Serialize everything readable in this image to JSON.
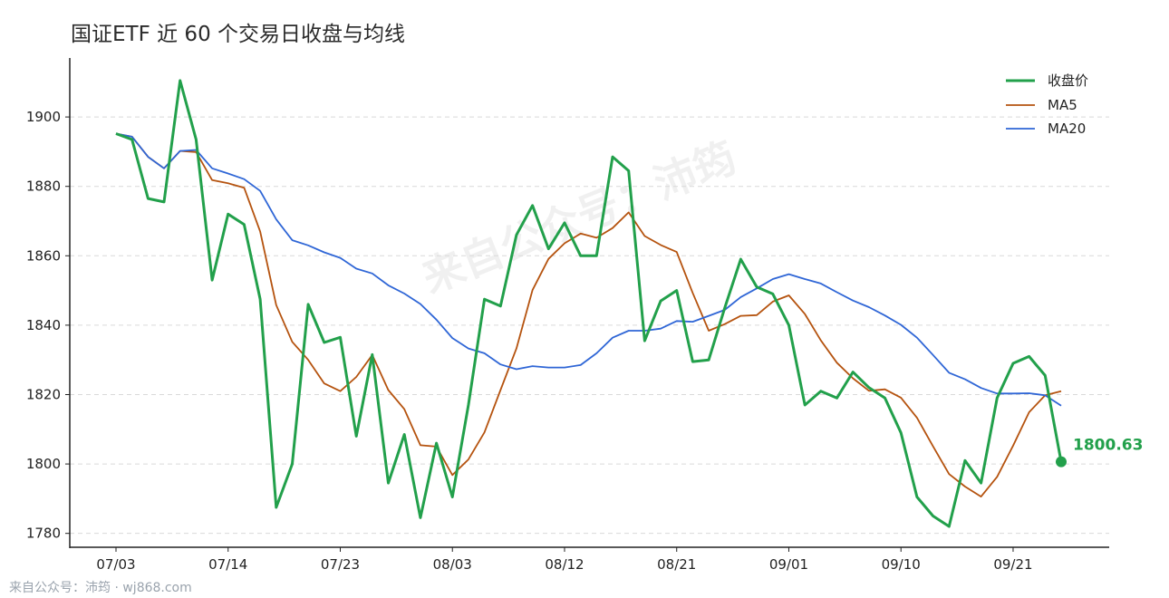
{
  "title": "国证ETF 近 60 个交易日收盘与均线",
  "watermark": "来自公众号：沛筠",
  "footer": "来自公众号：沛筠 · wj868.com",
  "colors": {
    "close": "#22a04b",
    "ma5": "#b5530f",
    "ma20": "#2f66d6"
  },
  "chart_data": {
    "type": "line",
    "title": "国证ETF 近 60 个交易日收盘与均线",
    "xlabel": "",
    "ylabel": "",
    "ylim": [
      1776,
      1917
    ],
    "yticks": [
      1780,
      1800,
      1820,
      1840,
      1860,
      1880,
      1900
    ],
    "xticks": [
      {
        "index": 0,
        "label": "07/03"
      },
      {
        "index": 7,
        "label": "07/14"
      },
      {
        "index": 14,
        "label": "07/23"
      },
      {
        "index": 21,
        "label": "08/03"
      },
      {
        "index": 28,
        "label": "08/12"
      },
      {
        "index": 35,
        "label": "08/21"
      },
      {
        "index": 42,
        "label": "09/01"
      },
      {
        "index": 49,
        "label": "09/10"
      },
      {
        "index": 56,
        "label": "09/21"
      }
    ],
    "grid": "horizontal-dashed",
    "legend_position": "top-right",
    "last_value_label": "1800.63",
    "series": [
      {
        "name": "收盘价",
        "values": [
          1895.2,
          1893.5,
          1876.5,
          1875.5,
          1910.5,
          1893.5,
          1853.0,
          1872.0,
          1869.0,
          1847.5,
          1787.5,
          1800.0,
          1846.0,
          1835.0,
          1836.5,
          1808.0,
          1831.5,
          1794.5,
          1808.5,
          1784.5,
          1806.0,
          1790.5,
          1817.0,
          1847.5,
          1845.5,
          1866.0,
          1874.5,
          1862.0,
          1869.5,
          1860.0,
          1860.0,
          1888.5,
          1884.5,
          1835.5,
          1847.0,
          1850.0,
          1829.5,
          1830.0,
          1845.0,
          1859.0,
          1851.0,
          1849.0,
          1840.0,
          1817.0,
          1821.0,
          1819.0,
          1826.5,
          1822.0,
          1819.0,
          1809.0,
          1790.5,
          1785.0,
          1782.0,
          1801.0,
          1794.5,
          1819.0,
          1829.0,
          1831.0,
          1825.5,
          1800.63
        ]
      },
      {
        "name": "MA5",
        "values": [
          1895.2,
          1894.3,
          1888.5,
          1885.2,
          1890.2,
          1889.9,
          1881.8,
          1880.9,
          1879.6,
          1867.0,
          1845.8,
          1835.2,
          1830.0,
          1823.2,
          1821.0,
          1825.1,
          1831.4,
          1821.3,
          1815.8,
          1805.4,
          1805.0,
          1796.8,
          1801.3,
          1809.1,
          1821.3,
          1833.3,
          1850.1,
          1859.1,
          1863.6,
          1866.4,
          1865.2,
          1868.0,
          1872.5,
          1865.7,
          1863.1,
          1861.1,
          1849.3,
          1838.4,
          1840.3,
          1842.7,
          1842.9,
          1846.8,
          1848.6,
          1843.2,
          1835.6,
          1829.2,
          1824.7,
          1821.1,
          1821.5,
          1819.1,
          1813.3,
          1805.1,
          1797.1,
          1793.5,
          1790.6,
          1796.3,
          1805.3,
          1814.9,
          1819.8,
          1821.0
        ]
      },
      {
        "name": "MA20",
        "values": [
          1895.2,
          1894.3,
          1888.5,
          1885.2,
          1890.2,
          1890.5,
          1885.2,
          1883.7,
          1882.1,
          1878.7,
          1870.5,
          1864.5,
          1863.0,
          1861.0,
          1859.4,
          1856.3,
          1854.9,
          1851.5,
          1849.1,
          1846.1,
          1841.6,
          1836.3,
          1833.3,
          1831.9,
          1828.7,
          1827.3,
          1828.2,
          1827.8,
          1827.8,
          1828.5,
          1831.9,
          1836.4,
          1838.4,
          1838.4,
          1839.0,
          1841.2,
          1841.0,
          1842.7,
          1844.4,
          1848.1,
          1850.6,
          1853.3,
          1854.7,
          1853.3,
          1852.0,
          1849.5,
          1847.1,
          1845.2,
          1842.8,
          1840.1,
          1836.4,
          1831.4,
          1826.3,
          1824.4,
          1821.9,
          1820.3,
          1820.3,
          1820.4,
          1819.8,
          1816.8
        ]
      }
    ]
  }
}
